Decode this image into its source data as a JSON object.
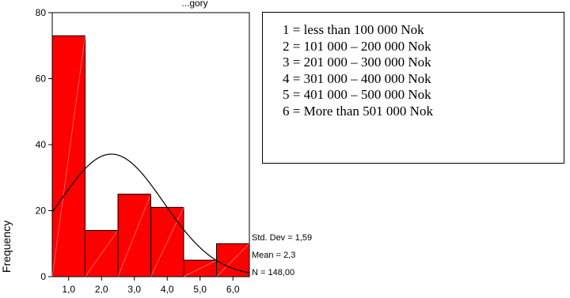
{
  "title_fragment": "...gory",
  "chart_data": {
    "type": "bar",
    "subtype": "histogram",
    "categories": [
      "1,0",
      "2,0",
      "3,0",
      "4,0",
      "5,0",
      "6,0"
    ],
    "values": [
      73,
      14,
      25,
      21,
      5,
      10
    ],
    "ylabel": "Frequency",
    "xlabel": "",
    "ylim": [
      0,
      80
    ],
    "xlim": [
      0.5,
      6.5
    ],
    "yticks": [
      "0",
      "20",
      "40",
      "60",
      "80"
    ],
    "yticks_values": [
      0,
      20,
      40,
      60,
      80
    ],
    "bar_color": "#ff0000",
    "grid": false,
    "overlay": {
      "type": "normal-curve",
      "mean": 2.3,
      "std": 1.59,
      "n": 148,
      "bin_width": 1
    },
    "stats": [
      "Std. Dev = 1,59",
      "Mean = 2,3",
      "N = 148,00"
    ]
  },
  "legend_box": {
    "lines": [
      "1 = less than 100 000 Nok",
      "2 = 101 000 – 200 000 Nok",
      "3 = 201 000 – 300 000 Nok",
      "4 = 301 000 – 400 000 Nok",
      "5 = 401 000 – 500 000 Nok",
      "6 = More than 501 000 Nok"
    ]
  }
}
